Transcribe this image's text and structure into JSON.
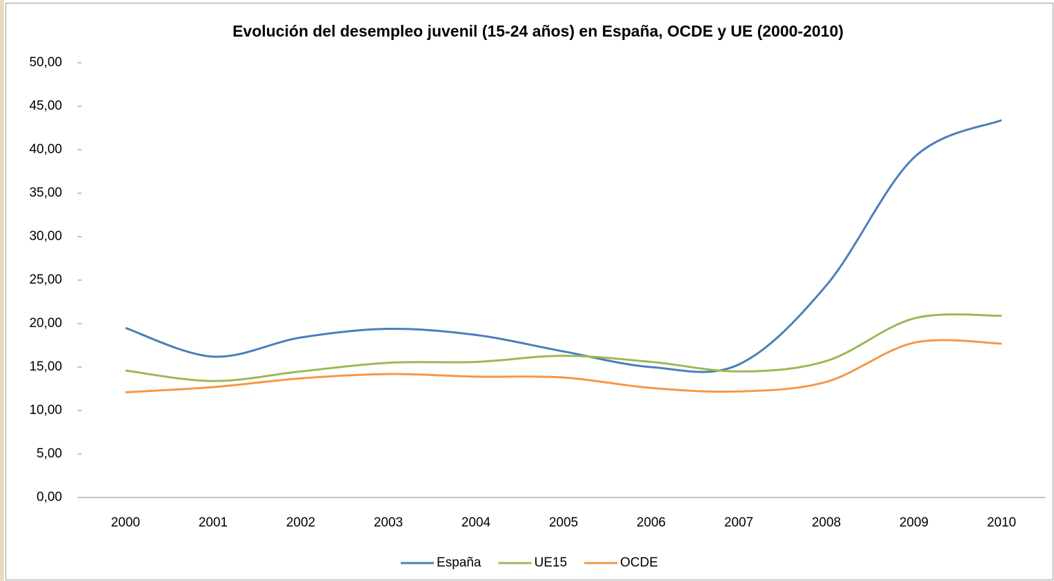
{
  "chart_data": {
    "type": "line",
    "title": "Evolución del desempleo juvenil  (15-24 años) en España, OCDE y UE (2000-2010)",
    "categories": [
      "2000",
      "2001",
      "2002",
      "2003",
      "2004",
      "2005",
      "2006",
      "2007",
      "2008",
      "2009",
      "2010"
    ],
    "series": [
      {
        "name": "España",
        "color": "#4a7ebb",
        "values": [
          19.5,
          16.2,
          18.4,
          19.4,
          18.7,
          16.8,
          15.0,
          15.3,
          24.4,
          39.1,
          43.4
        ]
      },
      {
        "name": "UE15",
        "color": "#98b954",
        "values": [
          14.6,
          13.4,
          14.5,
          15.5,
          15.6,
          16.3,
          15.6,
          14.5,
          15.7,
          20.6,
          20.9
        ]
      },
      {
        "name": "OCDE",
        "color": "#f79646",
        "values": [
          12.1,
          12.7,
          13.7,
          14.2,
          13.9,
          13.8,
          12.6,
          12.2,
          13.3,
          17.8,
          17.7
        ]
      }
    ],
    "ylim": [
      0,
      50
    ],
    "yticks": [
      {
        "value": 0,
        "label": "0,00"
      },
      {
        "value": 5,
        "label": "5,00"
      },
      {
        "value": 10,
        "label": "10,00"
      },
      {
        "value": 15,
        "label": "15,00"
      },
      {
        "value": 20,
        "label": "20,00"
      },
      {
        "value": 25,
        "label": "25,00"
      },
      {
        "value": 30,
        "label": "30,00"
      },
      {
        "value": 35,
        "label": "35,00"
      },
      {
        "value": 40,
        "label": "40,00"
      },
      {
        "value": 45,
        "label": "45,00"
      },
      {
        "value": 50,
        "label": "50,00"
      }
    ],
    "legend": "bottom",
    "smooth": true
  }
}
